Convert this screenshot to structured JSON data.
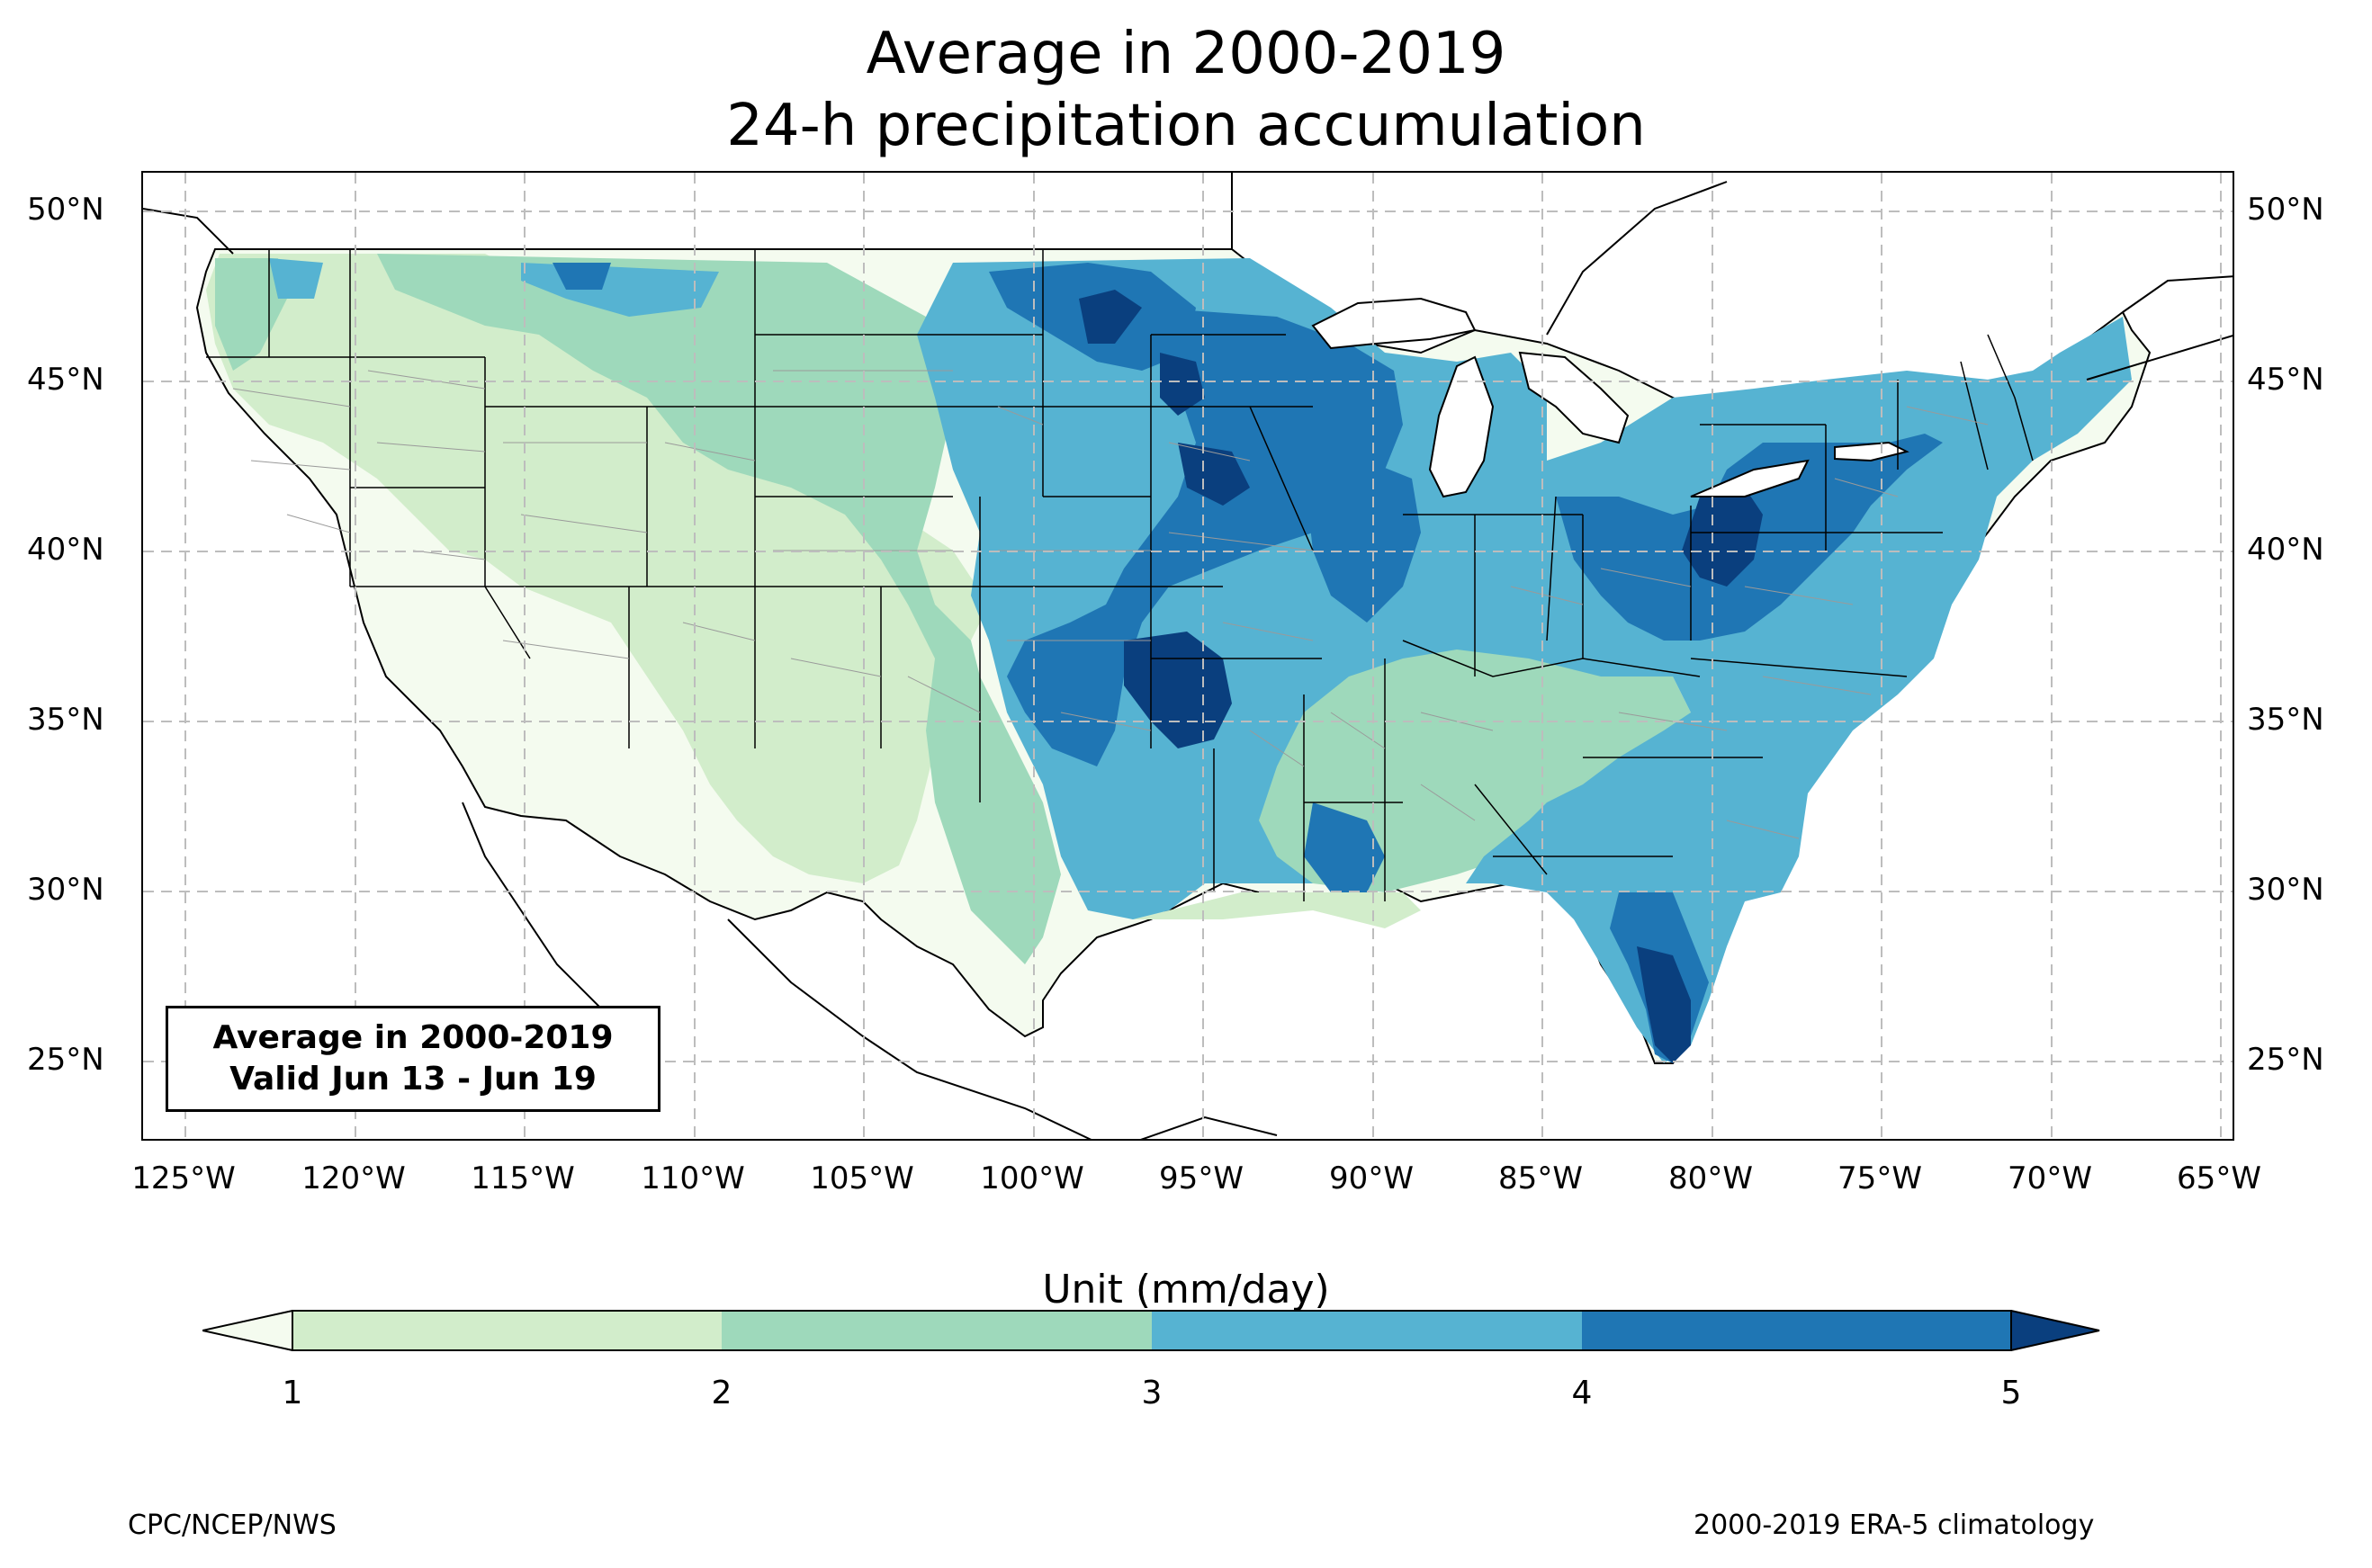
{
  "header": {
    "title_line1": "Average in 2000-2019",
    "title_line2": "24-h precipitation accumulation"
  },
  "map": {
    "extent": {
      "lon": [
        -126.5,
        -64.7
      ],
      "lat": [
        22.8,
        51.3
      ]
    },
    "lat_labels": [
      "50°N",
      "45°N",
      "40°N",
      "35°N",
      "30°N",
      "25°N"
    ],
    "lon_labels": [
      "125°W",
      "120°W",
      "115°W",
      "110°W",
      "105°W",
      "100°W",
      "95°W",
      "90°W",
      "85°W",
      "80°W",
      "75°W",
      "70°W",
      "65°W"
    ],
    "gridlines": "dashed-gray",
    "colors": {
      "land_lt1": "#f4fbef",
      "c1_2": "#d2edcb",
      "c2_3": "#9ed9bb",
      "c3_4": "#56b3d2",
      "c4_5": "#1f76b4",
      "gt5": "#0a3f7e",
      "borders": "#000000",
      "counties": "#9a9a9a"
    }
  },
  "info_box": {
    "line1": "Average in 2000-2019",
    "line2": "Valid Jun 13 - Jun 19"
  },
  "colorbar": {
    "title": "Unit (mm/day)",
    "ticks": [
      "1",
      "2",
      "3",
      "4",
      "5"
    ],
    "colors": [
      "#f4fbef",
      "#d2edcb",
      "#9ed9bb",
      "#56b3d2",
      "#1f76b4",
      "#0a3f7e"
    ],
    "extend": "both"
  },
  "footer": {
    "left": "CPC/NCEP/NWS",
    "right": "2000-2019 ERA-5 climatology"
  }
}
